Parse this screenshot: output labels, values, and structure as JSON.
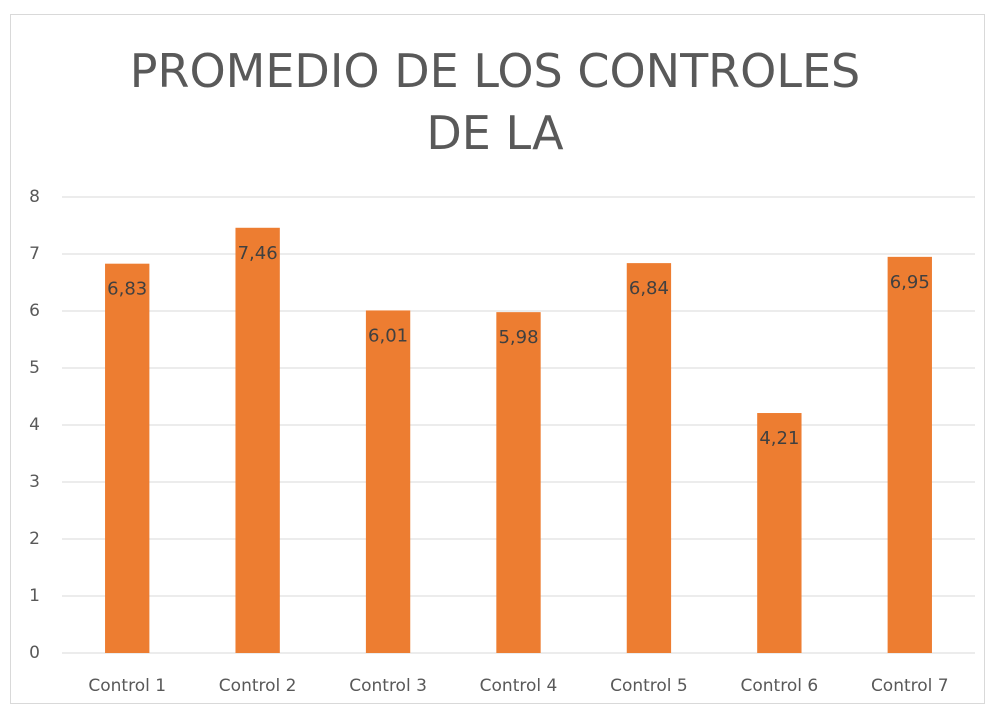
{
  "chart_data": {
    "type": "bar",
    "title": "PROMEDIO DE LOS CONTROLES DE LA",
    "categories": [
      "Control 1",
      "Control 2",
      "Control 3",
      "Control 4",
      "Control 5",
      "Control 6",
      "Control 7"
    ],
    "values": [
      6.83,
      7.46,
      6.01,
      5.98,
      6.84,
      4.21,
      6.95
    ],
    "value_labels": [
      "6,83",
      "7,46",
      "6,01",
      "5,98",
      "6,84",
      "4,21",
      "6,95"
    ],
    "color": "#ed7d31",
    "ylim": [
      0,
      8
    ],
    "yticks": [
      0,
      1,
      2,
      3,
      4,
      5,
      6,
      7,
      8
    ],
    "grid": true
  }
}
